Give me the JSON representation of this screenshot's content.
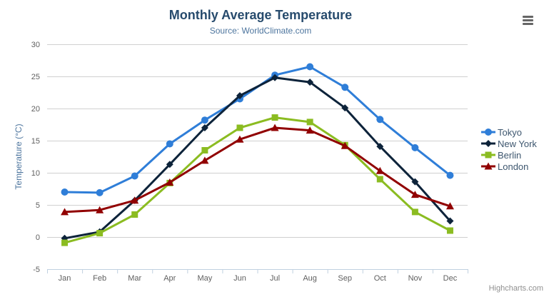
{
  "header": {
    "title": "Monthly Average Temperature",
    "subtitle": "Source: WorldClimate.com"
  },
  "credits": {
    "label": "Highcharts.com"
  },
  "export_menu": {
    "icon": "hamburger-icon"
  },
  "colors": {
    "title": "#274b6d",
    "subtitle": "#4d759e",
    "axis_label": "#606060",
    "axis_title": "#4d759e",
    "grid": "#d0d0d0",
    "axis_line": "#c0d0e0",
    "legend_text": "#3e576f",
    "credits_text": "#909090",
    "menu_icon": "#666666"
  },
  "chart_data": {
    "type": "line",
    "title": "Monthly Average Temperature",
    "subtitle": "Source: WorldClimate.com",
    "xlabel": "",
    "ylabel": "Temperature (°C)",
    "categories": [
      "Jan",
      "Feb",
      "Mar",
      "Apr",
      "May",
      "Jun",
      "Jul",
      "Aug",
      "Sep",
      "Oct",
      "Nov",
      "Dec"
    ],
    "ylim": [
      -5,
      30
    ],
    "yticks": [
      -5,
      0,
      5,
      10,
      15,
      20,
      25,
      30
    ],
    "grid": true,
    "legend_position": "right-middle",
    "series": [
      {
        "name": "Tokyo",
        "color": "#2f7ed8",
        "marker": "circle",
        "values": [
          7.0,
          6.9,
          9.5,
          14.5,
          18.2,
          21.5,
          25.2,
          26.5,
          23.3,
          18.3,
          13.9,
          9.6
        ]
      },
      {
        "name": "New York",
        "color": "#0d233a",
        "marker": "diamond",
        "values": [
          -0.2,
          0.8,
          5.7,
          11.3,
          17.0,
          22.0,
          24.8,
          24.1,
          20.1,
          14.1,
          8.6,
          2.5
        ]
      },
      {
        "name": "Berlin",
        "color": "#8bbc21",
        "marker": "square",
        "values": [
          -0.9,
          0.6,
          3.5,
          8.4,
          13.5,
          17.0,
          18.6,
          17.9,
          14.3,
          9.0,
          3.9,
          1.0
        ]
      },
      {
        "name": "London",
        "color": "#910000",
        "marker": "triangle",
        "values": [
          3.9,
          4.2,
          5.7,
          8.5,
          11.9,
          15.2,
          17.0,
          16.6,
          14.2,
          10.3,
          6.6,
          4.8
        ]
      }
    ]
  }
}
